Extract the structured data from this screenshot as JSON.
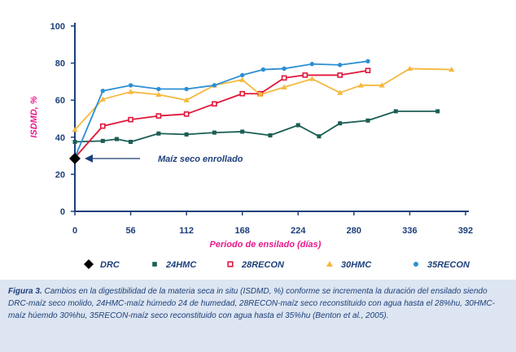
{
  "chart_data": {
    "type": "line",
    "xlabel": "Periodo de ensilado (días)",
    "ylabel": "ISDMD, %",
    "xlim": [
      0,
      392
    ],
    "ylim": [
      0,
      100
    ],
    "x_ticks": [
      "0",
      "56",
      "112",
      "168",
      "224",
      "280",
      "336",
      "392"
    ],
    "y_ticks": [
      "0",
      "20",
      "40",
      "60",
      "80",
      "100"
    ],
    "grid": false,
    "legend_position": "bottom",
    "series": [
      {
        "name": "DRC",
        "color": "#000000",
        "marker": "diamond",
        "line": false,
        "points": [
          [
            0,
            28.5
          ]
        ]
      },
      {
        "name": "24HMC",
        "color": "#1b5e55",
        "marker": "square",
        "points": [
          [
            0,
            37.5
          ],
          [
            28,
            38
          ],
          [
            42,
            39
          ],
          [
            56,
            37.5
          ],
          [
            84,
            42
          ],
          [
            112,
            41.5
          ],
          [
            140,
            42.5
          ],
          [
            168,
            43
          ],
          [
            196,
            41
          ],
          [
            224,
            46.5
          ],
          [
            245,
            40.5
          ],
          [
            266,
            47.5
          ],
          [
            294,
            49
          ],
          [
            322,
            54
          ],
          [
            364,
            54
          ]
        ]
      },
      {
        "name": "28RECON",
        "color": "#e0173a",
        "marker": "open-square",
        "points": [
          [
            0,
            29
          ],
          [
            28,
            46
          ],
          [
            56,
            49.5
          ],
          [
            84,
            51.5
          ],
          [
            112,
            52.5
          ],
          [
            140,
            58
          ],
          [
            168,
            63.5
          ],
          [
            186,
            63.5
          ],
          [
            210,
            72
          ],
          [
            231,
            73.5
          ],
          [
            266,
            73.5
          ],
          [
            294,
            76
          ]
        ]
      },
      {
        "name": "30HMC",
        "color": "#f5b93f",
        "marker": "triangle",
        "points": [
          [
            0,
            44
          ],
          [
            28,
            60.5
          ],
          [
            56,
            64.5
          ],
          [
            84,
            63
          ],
          [
            112,
            60
          ],
          [
            140,
            68
          ],
          [
            168,
            71
          ],
          [
            186,
            63
          ],
          [
            210,
            67
          ],
          [
            238,
            71.5
          ],
          [
            266,
            64
          ],
          [
            287,
            68
          ],
          [
            308,
            68
          ],
          [
            336,
            77
          ],
          [
            378,
            76.5
          ]
        ]
      },
      {
        "name": "35RECON",
        "color": "#2b8fd4",
        "marker": "circle",
        "points": [
          [
            0,
            29
          ],
          [
            28,
            65
          ],
          [
            56,
            68
          ],
          [
            84,
            66
          ],
          [
            112,
            66
          ],
          [
            140,
            68
          ],
          [
            168,
            73.5
          ],
          [
            189,
            76.5
          ],
          [
            210,
            77
          ],
          [
            238,
            79.5
          ],
          [
            266,
            79
          ],
          [
            294,
            81
          ]
        ]
      }
    ],
    "annotation": {
      "text": "Maíz seco enrollado",
      "x": 0,
      "y": 28.5
    }
  },
  "caption": {
    "label": "Figura 3.",
    "text": " Cambios en la digestibilidad de la materia seca in situ (ISDMD, %) conforme se incrementa la duración del ensilado siendo DRC-maíz seco molido, 24HMC-maíz húmedo 24 de humedad, 28RECON-maíz seco reconstituido con agua hasta el 28%hu, 30HMC-maíz húemdo 30%hu, 35RECON-maíz seco reconstituido con agua hasta el 35%hu (Benton et al., 2005)."
  }
}
